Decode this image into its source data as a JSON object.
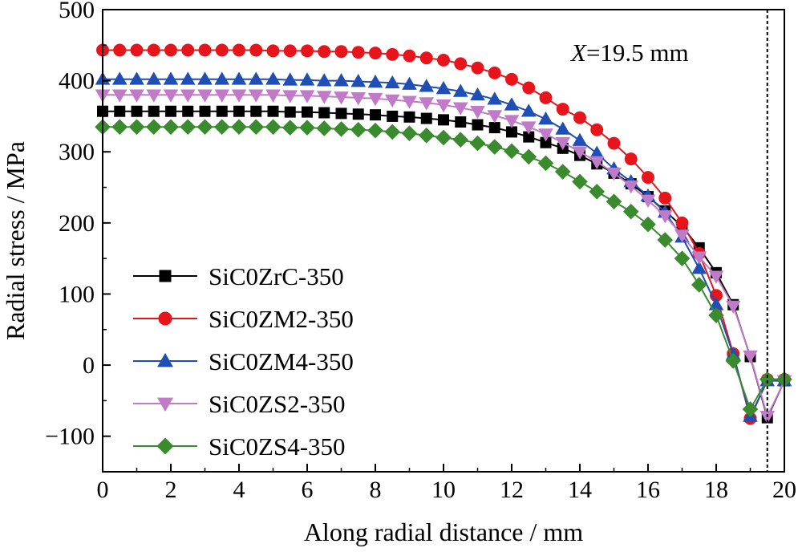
{
  "chart_data": {
    "type": "line",
    "title": "",
    "xlabel": "Along radial distance / mm",
    "ylabel": "Radial stress / MPa",
    "xlim": [
      0,
      20
    ],
    "ylim": [
      -150,
      500
    ],
    "xticks": [
      0,
      2,
      4,
      6,
      8,
      10,
      12,
      14,
      16,
      18,
      20
    ],
    "xtick_labels": [
      "0",
      "2",
      "4",
      "6",
      "8",
      "10",
      "12",
      "14",
      "16",
      "18",
      "20"
    ],
    "yticks": [
      -100,
      0,
      100,
      200,
      300,
      400,
      500
    ],
    "ytick_labels": [
      "−100",
      "0",
      "100",
      "200",
      "300",
      "400",
      "500"
    ],
    "grid": false,
    "legend_position": "bottom-left",
    "annotation": {
      "prefix": "X",
      "suffix": "=19.5 mm",
      "x": 19.5
    },
    "x": [
      0,
      0.5,
      1,
      1.5,
      2,
      2.5,
      3,
      3.5,
      4,
      4.5,
      5,
      5.5,
      6,
      6.5,
      7,
      7.5,
      8,
      8.5,
      9,
      9.5,
      10,
      10.5,
      11,
      11.5,
      12,
      12.5,
      13,
      13.5,
      14,
      14.5,
      15,
      15.5,
      16,
      16.5,
      17,
      17.5,
      18,
      18.5,
      19,
      19.5,
      20
    ],
    "series": [
      {
        "name": "SiC0ZrC-350",
        "color": "#000000",
        "marker": "square",
        "values": [
          357,
          357,
          357,
          357,
          357,
          357,
          357,
          357,
          357,
          357,
          357,
          356,
          356,
          355,
          354,
          353,
          352,
          350,
          349,
          347,
          345,
          342,
          338,
          334,
          328,
          321,
          313,
          305,
          295,
          283,
          270,
          255,
          237,
          217,
          195,
          165,
          130,
          85,
          12,
          -74,
          -22
        ]
      },
      {
        "name": "SiC0ZM2-350",
        "color": "#e8141c",
        "marker": "circle",
        "values": [
          443,
          443,
          443,
          443,
          443,
          443,
          443,
          443,
          443,
          443,
          442,
          442,
          442,
          441,
          441,
          440,
          439,
          437,
          435,
          432,
          429,
          424,
          418,
          411,
          402,
          390,
          376,
          360,
          348,
          331,
          312,
          290,
          264,
          235,
          200,
          157,
          98,
          16,
          -75,
          -20,
          -20
        ]
      },
      {
        "name": "SiC0ZM4-350",
        "color": "#1f4fb4",
        "marker": "triangle-up",
        "values": [
          402,
          402,
          402,
          402,
          402,
          402,
          402,
          402,
          402,
          402,
          402,
          401,
          401,
          400,
          400,
          399,
          398,
          397,
          395,
          392,
          389,
          385,
          380,
          374,
          366,
          357,
          346,
          332,
          316,
          298,
          276,
          258,
          238,
          215,
          180,
          136,
          85,
          15,
          -72,
          -22,
          -22
        ]
      },
      {
        "name": "SiC0ZS2-350",
        "color": "#c07ac8",
        "marker": "triangle-down",
        "values": [
          380,
          380,
          380,
          380,
          380,
          380,
          380,
          380,
          380,
          380,
          380,
          379,
          379,
          378,
          377,
          376,
          375,
          373,
          371,
          369,
          366,
          362,
          357,
          351,
          344,
          335,
          325,
          313,
          300,
          286,
          270,
          252,
          232,
          210,
          183,
          152,
          125,
          83,
          13,
          -72,
          -22
        ]
      },
      {
        "name": "SiC0ZS4-350",
        "color": "#3a8a2e",
        "marker": "diamond",
        "values": [
          335,
          335,
          335,
          335,
          335,
          335,
          335,
          335,
          335,
          335,
          335,
          334,
          334,
          333,
          332,
          331,
          330,
          328,
          326,
          323,
          320,
          317,
          312,
          307,
          301,
          293,
          284,
          272,
          258,
          244,
          230,
          216,
          198,
          176,
          150,
          113,
          70,
          6,
          -62,
          -20,
          -20
        ]
      }
    ]
  }
}
